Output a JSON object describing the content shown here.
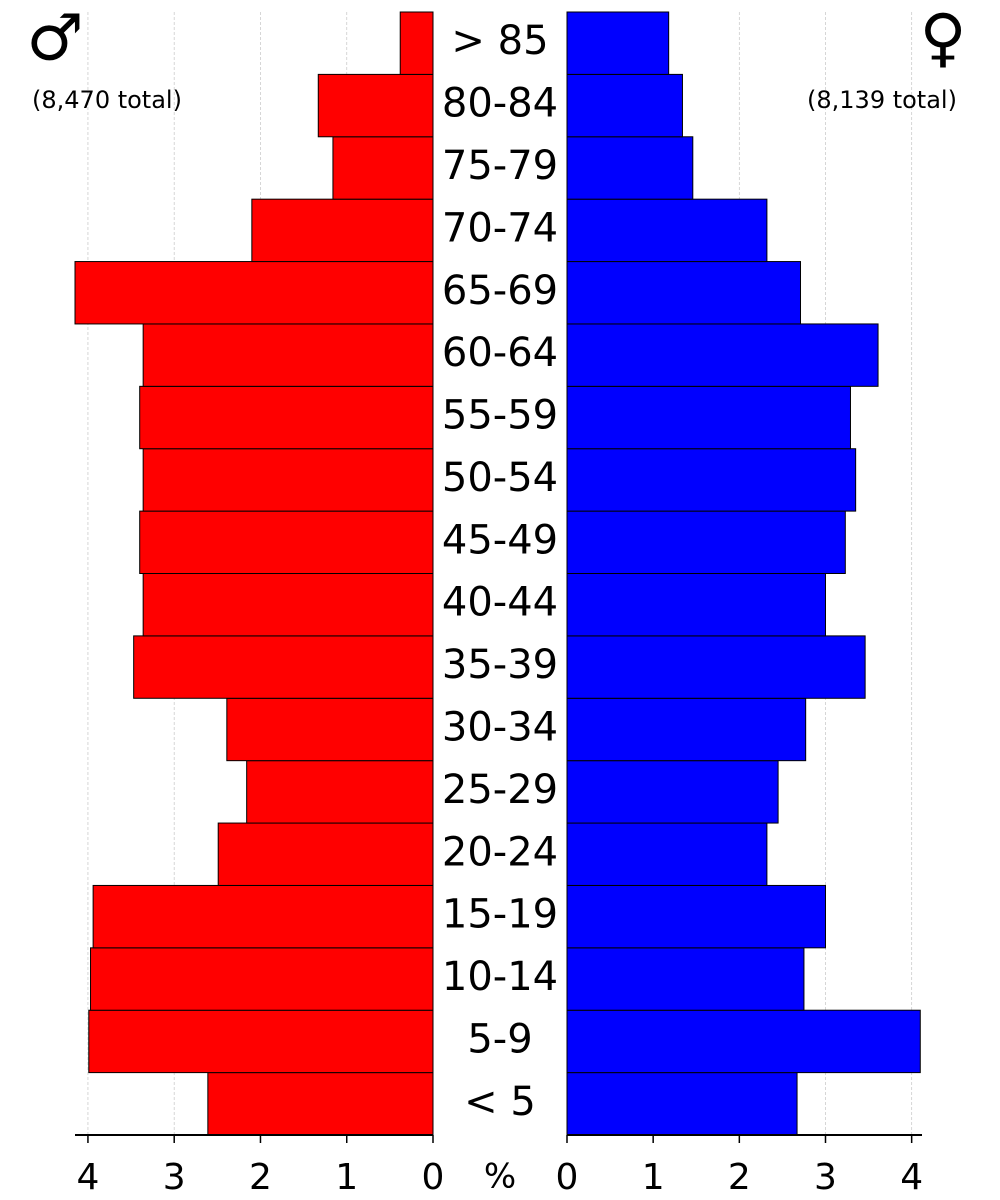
{
  "chart_data": {
    "type": "pyramid",
    "categories": [
      "< 5",
      "5-9",
      "10-14",
      "15-19",
      "20-24",
      "25-29",
      "30-34",
      "35-39",
      "40-44",
      "45-49",
      "50-54",
      "55-59",
      "60-64",
      "65-69",
      "70-74",
      "75-79",
      "80-84",
      "> 85"
    ],
    "xlabel": "%",
    "grid": true,
    "series": [
      {
        "name": "♂",
        "total_label": "(8,470 total)",
        "color": "#ff0000",
        "side": "left",
        "values": [
          2.61,
          3.99,
          3.97,
          3.94,
          2.49,
          2.16,
          2.39,
          3.47,
          3.36,
          3.4,
          3.36,
          3.4,
          3.36,
          4.15,
          2.1,
          1.16,
          1.33,
          0.38
        ],
        "xlim": [
          0,
          4.15
        ],
        "xticks": [
          0,
          1,
          2,
          3,
          4
        ]
      },
      {
        "name": "♀",
        "total_label": "(8,139 total)",
        "color": "#0000ff",
        "side": "right",
        "values": [
          2.67,
          4.1,
          2.75,
          3.0,
          2.32,
          2.45,
          2.77,
          3.46,
          3.0,
          3.23,
          3.35,
          3.29,
          3.61,
          2.71,
          2.32,
          1.46,
          1.34,
          1.18
        ],
        "xlim": [
          0,
          4.12
        ],
        "xticks": [
          0,
          1,
          2,
          3,
          4
        ]
      }
    ]
  }
}
